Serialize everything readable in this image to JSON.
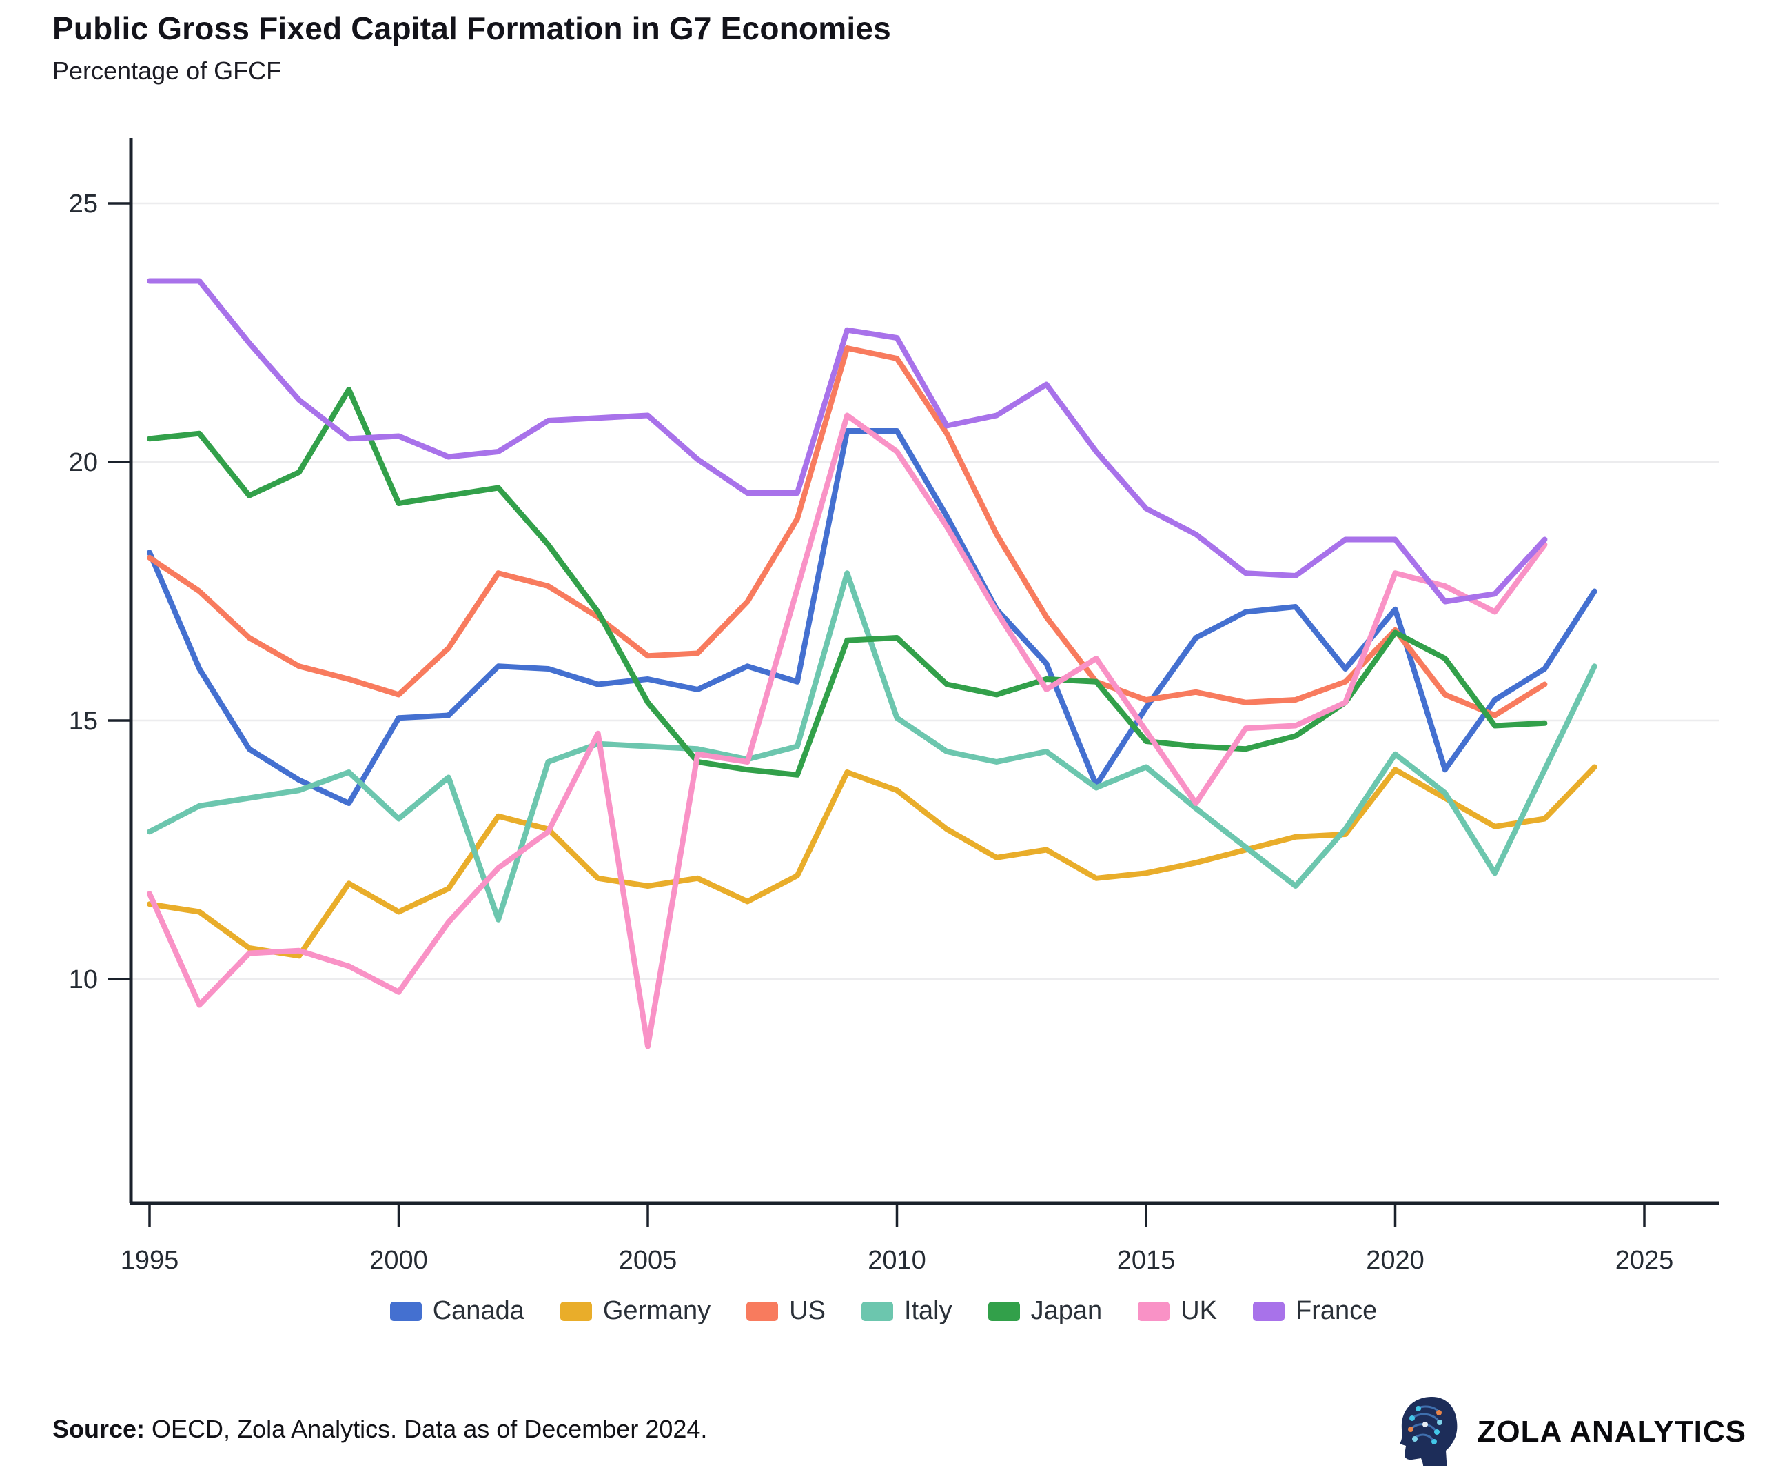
{
  "title": "Public Gross Fixed Capital Formation in G7 Economies",
  "subtitle": "Percentage of GFCF",
  "source": {
    "label": "Source:",
    "text": " OECD, Zola Analytics. Data as of December 2024."
  },
  "brand": {
    "name": "ZOLA ANALYTICS"
  },
  "chart_data": {
    "type": "line",
    "title": "Public Gross Fixed Capital Formation in G7 Economies",
    "subtitle": "Percentage of GFCF",
    "xlabel": "",
    "ylabel": "Percentage of GFCF",
    "grid": "horizontal-only",
    "legend_position": "bottom",
    "xlim": [
      1994.6,
      2026.5
    ],
    "ylim": [
      5.6,
      26.3
    ],
    "xticks": [
      1995,
      2000,
      2005,
      2010,
      2015,
      2020,
      2025
    ],
    "yticks": [
      10,
      15,
      20,
      25
    ],
    "x": [
      1995,
      1996,
      1997,
      1998,
      1999,
      2000,
      2001,
      2002,
      2003,
      2004,
      2005,
      2006,
      2007,
      2008,
      2009,
      2010,
      2011,
      2012,
      2013,
      2014,
      2015,
      2016,
      2017,
      2018,
      2019,
      2020,
      2021,
      2022,
      2023,
      2024
    ],
    "series": [
      {
        "name": "Canada",
        "color": "#4470d0",
        "values": [
          18.25,
          16.0,
          14.45,
          13.85,
          13.4,
          15.05,
          15.1,
          16.05,
          16.0,
          15.7,
          15.8,
          15.6,
          16.05,
          15.75,
          20.6,
          20.6,
          18.95,
          17.15,
          16.1,
          13.75,
          15.25,
          16.6,
          17.1,
          17.2,
          16.0,
          17.15,
          14.05,
          15.4,
          16.0,
          17.5
        ]
      },
      {
        "name": "Germany",
        "color": "#e9ad2a",
        "values": [
          11.45,
          11.3,
          10.6,
          10.45,
          11.85,
          11.3,
          11.75,
          13.15,
          12.9,
          11.95,
          11.8,
          11.95,
          11.5,
          12.0,
          14.0,
          13.65,
          12.9,
          12.35,
          12.5,
          11.95,
          12.05,
          12.25,
          12.5,
          12.75,
          12.8,
          14.05,
          13.5,
          12.95,
          13.1,
          14.1
        ]
      },
      {
        "name": "US",
        "color": "#f87b5e",
        "values": [
          18.15,
          17.5,
          16.6,
          16.05,
          15.8,
          15.5,
          16.4,
          17.85,
          17.6,
          17.0,
          16.25,
          16.3,
          17.3,
          18.9,
          22.2,
          22.0,
          20.55,
          18.6,
          17.0,
          15.75,
          15.4,
          15.55,
          15.35,
          15.4,
          15.75,
          16.75,
          15.5,
          15.1,
          15.7,
          null
        ]
      },
      {
        "name": "Italy",
        "color": "#6cc6ae",
        "values": [
          12.85,
          13.35,
          13.5,
          13.65,
          14.0,
          13.1,
          13.9,
          11.15,
          14.2,
          14.55,
          14.5,
          14.45,
          14.25,
          14.5,
          17.85,
          15.05,
          14.4,
          14.2,
          14.4,
          13.7,
          14.1,
          13.3,
          12.55,
          11.8,
          12.9,
          14.35,
          13.6,
          12.05,
          14.05,
          16.05
        ]
      },
      {
        "name": "Japan",
        "color": "#32a04a",
        "values": [
          20.45,
          20.55,
          19.35,
          19.8,
          21.4,
          19.2,
          19.35,
          19.5,
          18.4,
          17.1,
          15.35,
          14.2,
          14.05,
          13.95,
          16.55,
          16.6,
          15.7,
          15.5,
          15.8,
          15.75,
          14.6,
          14.5,
          14.45,
          14.7,
          15.35,
          16.7,
          16.2,
          14.9,
          14.95,
          null
        ]
      },
      {
        "name": "UK",
        "color": "#f992c6",
        "values": [
          11.65,
          9.5,
          10.5,
          10.55,
          10.25,
          9.75,
          11.1,
          12.15,
          12.85,
          14.75,
          8.7,
          14.35,
          14.2,
          17.55,
          20.9,
          20.2,
          18.75,
          17.1,
          15.6,
          16.2,
          14.8,
          13.4,
          14.85,
          14.9,
          15.35,
          17.85,
          17.6,
          17.1,
          18.4,
          null
        ]
      },
      {
        "name": "France",
        "color": "#a872ea",
        "values": [
          23.5,
          23.5,
          22.3,
          21.2,
          20.45,
          20.5,
          20.1,
          20.2,
          20.8,
          20.85,
          20.9,
          20.05,
          19.4,
          19.4,
          22.55,
          22.4,
          20.7,
          20.9,
          21.5,
          20.2,
          19.1,
          18.6,
          17.85,
          17.8,
          18.5,
          18.5,
          17.3,
          17.45,
          18.5,
          null
        ]
      }
    ]
  }
}
